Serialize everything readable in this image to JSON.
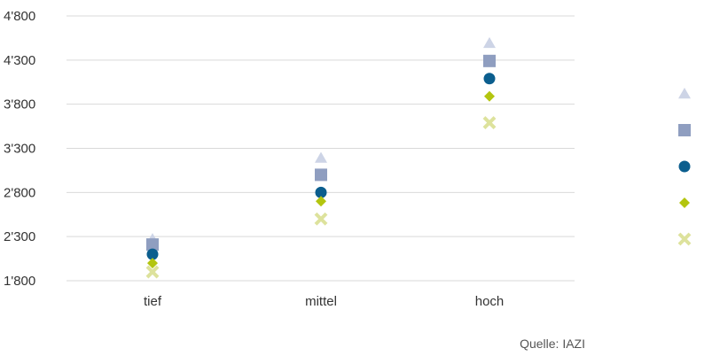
{
  "chart_data": {
    "type": "scatter",
    "categories": [
      "tief",
      "mittel",
      "hoch"
    ],
    "ylim": [
      1800,
      4800
    ],
    "yticks": [
      "1'800",
      "2'300",
      "2'800",
      "3'300",
      "3'800",
      "4'300",
      "4'800"
    ],
    "ytick_values": [
      1800,
      2300,
      2800,
      3300,
      3800,
      4300,
      4800
    ],
    "grid": true,
    "legend_position": "right",
    "series": [
      {
        "marker": "triangle",
        "color": "#cdd4e6",
        "values": [
          2270,
          3190,
          4490
        ]
      },
      {
        "marker": "square",
        "color": "#8f9ec0",
        "values": [
          2210,
          3000,
          4290
        ]
      },
      {
        "marker": "circle",
        "color": "#0b5e8e",
        "values": [
          2100,
          2800,
          4090
        ]
      },
      {
        "marker": "diamond",
        "color": "#b3c50f",
        "values": [
          2000,
          2700,
          3890
        ]
      },
      {
        "marker": "x",
        "color": "#dde29c",
        "values": [
          1900,
          2500,
          3590
        ]
      }
    ]
  },
  "source": "Quelle: IAZI"
}
